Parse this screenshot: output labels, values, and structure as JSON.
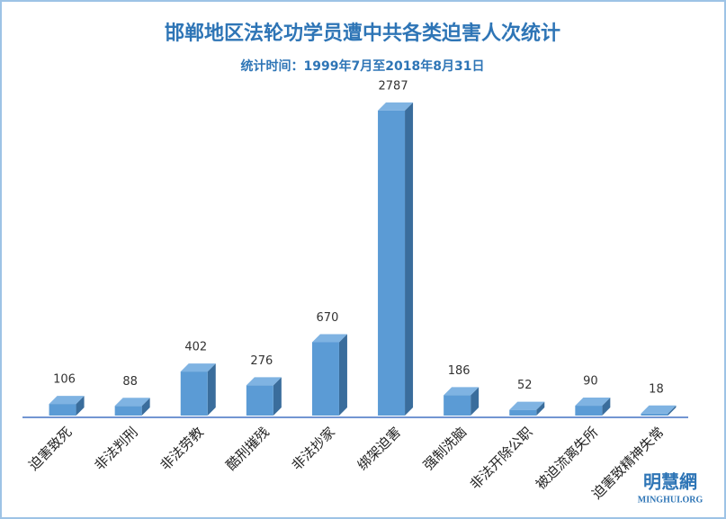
{
  "chart_data": {
    "type": "bar3d",
    "title": "邯郸地区法轮功学员遭中共各类迫害人次统计",
    "subtitle": "统计时间：1999年7月至2018年8月31日",
    "categories": [
      "迫害致死",
      "非法判刑",
      "非法劳教",
      "酷刑摧残",
      "非法抄家",
      "绑架迫害",
      "强制洗脑",
      "非法开除公职",
      "被迫流离失所",
      "迫害致精神失常"
    ],
    "values": [
      106,
      88,
      402,
      276,
      670,
      2787,
      186,
      52,
      90,
      18
    ],
    "color": "#5b9bd5",
    "ylim": [
      0,
      3000
    ],
    "source_logo": "明慧網",
    "source_url": "MINGHUI.ORG"
  }
}
